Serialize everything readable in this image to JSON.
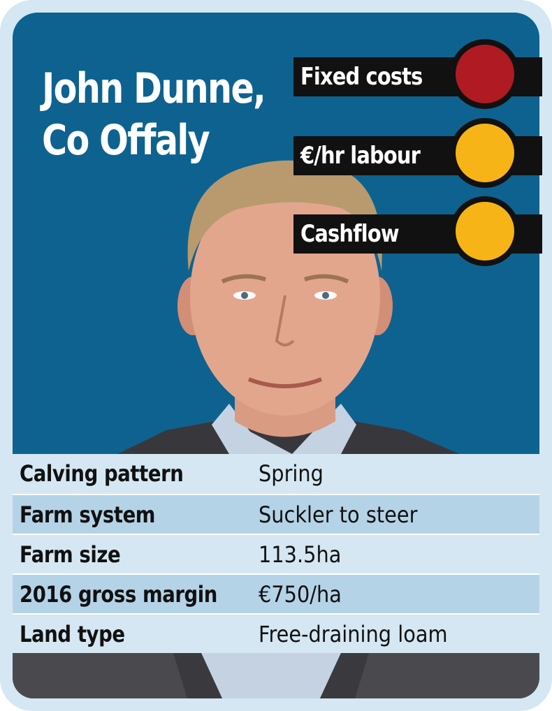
{
  "card": {
    "title_line1": "John Dunne,",
    "title_line2": "Co Offaly"
  },
  "ratings": [
    {
      "label": "Fixed costs",
      "status": "red",
      "color": "#b01a22"
    },
    {
      "label": "€/hr labour",
      "status": "amber",
      "color": "#f7b416"
    },
    {
      "label": "Cashflow",
      "status": "amber",
      "color": "#f7b416"
    }
  ],
  "details": [
    {
      "label": "Calving pattern",
      "value": "Spring"
    },
    {
      "label": "Farm system",
      "value": "Suckler to steer"
    },
    {
      "label": "Farm size",
      "value": "113.5ha"
    },
    {
      "label": "2016 gross margin",
      "value": "€750/ha"
    },
    {
      "label": "Land type",
      "value": "Free-draining loam"
    }
  ],
  "colors": {
    "panel_blue": "#0e628f",
    "card_background": "#d4e7f2",
    "row_highlight": "#b4d3e6",
    "bar_black": "#111111"
  }
}
